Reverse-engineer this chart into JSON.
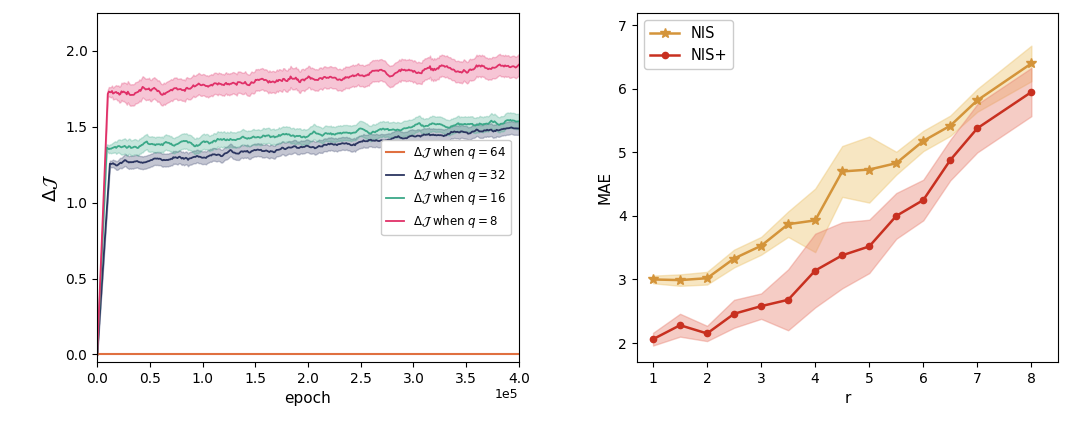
{
  "left": {
    "xlabel": "epoch",
    "ylabel": "\\Delta\\mathcal{J}",
    "xlim": [
      0,
      400000
    ],
    "ylim": [
      -0.05,
      2.25
    ],
    "xticks": [
      0,
      50000,
      100000,
      150000,
      200000,
      250000,
      300000,
      350000,
      400000
    ],
    "yticks": [
      0.0,
      0.5,
      1.0,
      1.5,
      2.0
    ],
    "q64": {
      "color": "#E07040",
      "label": "$\\Delta\\mathcal{J}$ when $q = 64$",
      "plateau": 0.0,
      "start": 0.0,
      "noise": 0.0,
      "std_plateau": 0.0,
      "ramp_epochs": 10000
    },
    "q32": {
      "color": "#2B3560",
      "label": "$\\Delta\\mathcal{J}$ when $q = 32$",
      "plateau": 1.42,
      "start": 0.0,
      "noise": 0.022,
      "std_plateau": 0.042,
      "ramp_epochs": 12000
    },
    "q16": {
      "color": "#3BA888",
      "label": "$\\Delta\\mathcal{J}$ when $q = 16$",
      "plateau": 1.44,
      "start": 0.0,
      "noise": 0.026,
      "std_plateau": 0.05,
      "ramp_epochs": 10000
    },
    "q8": {
      "color": "#E03068",
      "label": "$\\Delta\\mathcal{J}$ when $q = 8$",
      "plateau": 1.88,
      "start": 0.0,
      "noise": 0.038,
      "std_plateau": 0.07,
      "ramp_epochs": 10000
    }
  },
  "right": {
    "xlabel": "r",
    "ylabel": "MAE",
    "xlim": [
      0.7,
      8.5
    ],
    "ylim": [
      1.7,
      7.2
    ],
    "xticks": [
      1,
      2,
      3,
      4,
      5,
      6,
      7,
      8
    ],
    "yticks": [
      2,
      3,
      4,
      5,
      6,
      7
    ],
    "nis": {
      "color": "#D4943A",
      "fill_color": "#EEC878",
      "fill_alpha": 0.45,
      "label": "NIS",
      "x": [
        1.0,
        1.5,
        2.0,
        2.5,
        3.0,
        3.5,
        4.0,
        4.5,
        5.0,
        5.5,
        6.0,
        6.5,
        7.0,
        8.0
      ],
      "mean": [
        3.0,
        2.99,
        3.02,
        3.33,
        3.53,
        3.87,
        3.93,
        4.7,
        4.73,
        4.83,
        5.18,
        5.42,
        5.82,
        6.4
      ],
      "std": [
        0.06,
        0.09,
        0.1,
        0.14,
        0.14,
        0.2,
        0.5,
        0.4,
        0.52,
        0.18,
        0.16,
        0.16,
        0.18,
        0.28
      ]
    },
    "nis_plus": {
      "color": "#C83020",
      "fill_color": "#E88070",
      "fill_alpha": 0.4,
      "label": "NIS+",
      "x": [
        1.0,
        1.5,
        2.0,
        2.5,
        3.0,
        3.5,
        4.0,
        4.5,
        5.0,
        5.5,
        6.0,
        6.5,
        7.0,
        8.0
      ],
      "mean": [
        2.06,
        2.28,
        2.15,
        2.46,
        2.58,
        2.68,
        3.14,
        3.38,
        3.52,
        4.0,
        4.25,
        4.88,
        5.38,
        5.95
      ],
      "std": [
        0.1,
        0.18,
        0.12,
        0.22,
        0.2,
        0.48,
        0.58,
        0.52,
        0.42,
        0.36,
        0.32,
        0.32,
        0.38,
        0.38
      ]
    }
  }
}
